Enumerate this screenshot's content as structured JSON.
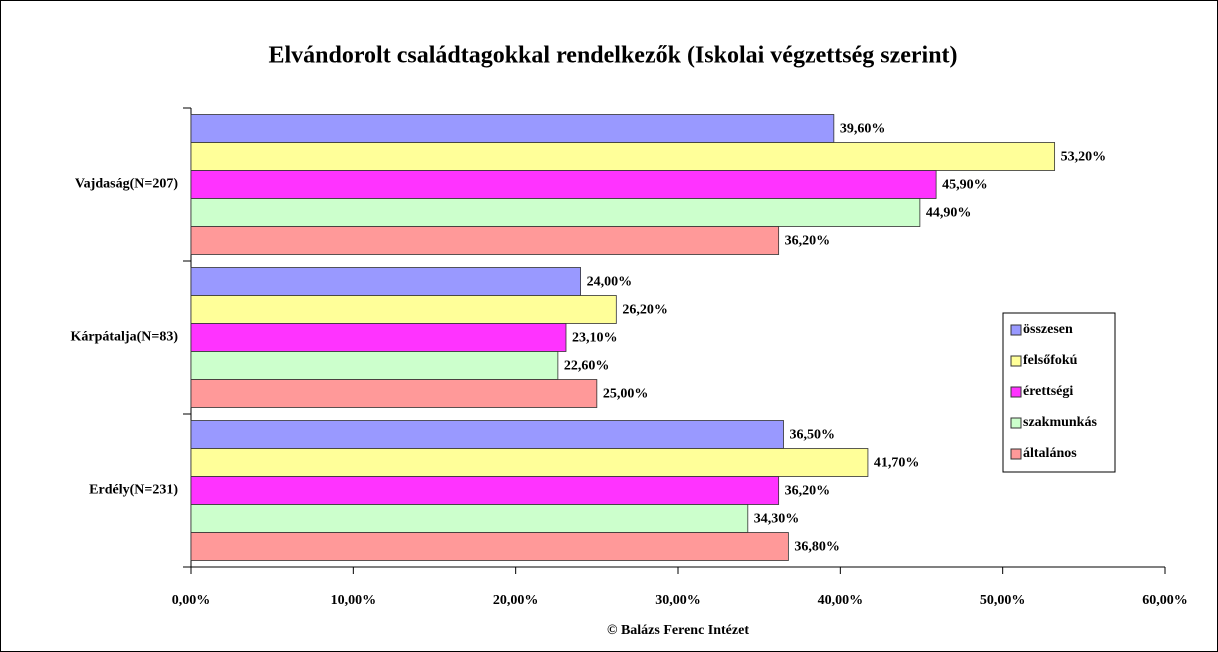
{
  "chart_data": {
    "type": "hbar",
    "title": "Elvándorolt családtagokkal rendelkezők (Iskolai végzettség szerint)",
    "xlabel": "© Balázs Ferenc Intézet",
    "categories": [
      "Vajdaság(N=207)",
      "Kárpátalja(N=83)",
      "Erdély(N=231)"
    ],
    "series": [
      {
        "name": "összesen",
        "color": "#9999ff",
        "values": [
          39.6,
          24.0,
          36.5
        ],
        "value_labels": [
          "39,60%",
          "24,00%",
          "36,50%"
        ]
      },
      {
        "name": "felsőfokú",
        "color": "#ffff99",
        "values": [
          53.2,
          26.2,
          41.7
        ],
        "value_labels": [
          "53,20%",
          "26,20%",
          "41,70%"
        ]
      },
      {
        "name": "érettségi",
        "color": "#ff33ff",
        "values": [
          45.9,
          23.1,
          36.2
        ],
        "value_labels": [
          "45,90%",
          "23,10%",
          "36,20%"
        ]
      },
      {
        "name": "szakmunkás",
        "color": "#ccffcc",
        "values": [
          44.9,
          22.6,
          34.3
        ],
        "value_labels": [
          "44,90%",
          "22,60%",
          "34,30%"
        ]
      },
      {
        "name": "általános",
        "color": "#ff9999",
        "values": [
          36.2,
          25.0,
          36.8
        ],
        "value_labels": [
          "36,20%",
          "25,00%",
          "36,80%"
        ]
      }
    ],
    "xlim": [
      0,
      60
    ],
    "xticks": [
      {
        "value": 0,
        "label": "0,00%"
      },
      {
        "value": 10,
        "label": "10,00%"
      },
      {
        "value": 20,
        "label": "20,00%"
      },
      {
        "value": 30,
        "label": "30,00%"
      },
      {
        "value": 40,
        "label": "40,00%"
      },
      {
        "value": 50,
        "label": "50,00%"
      },
      {
        "value": 60,
        "label": "60,00%"
      }
    ],
    "legend": "right"
  }
}
